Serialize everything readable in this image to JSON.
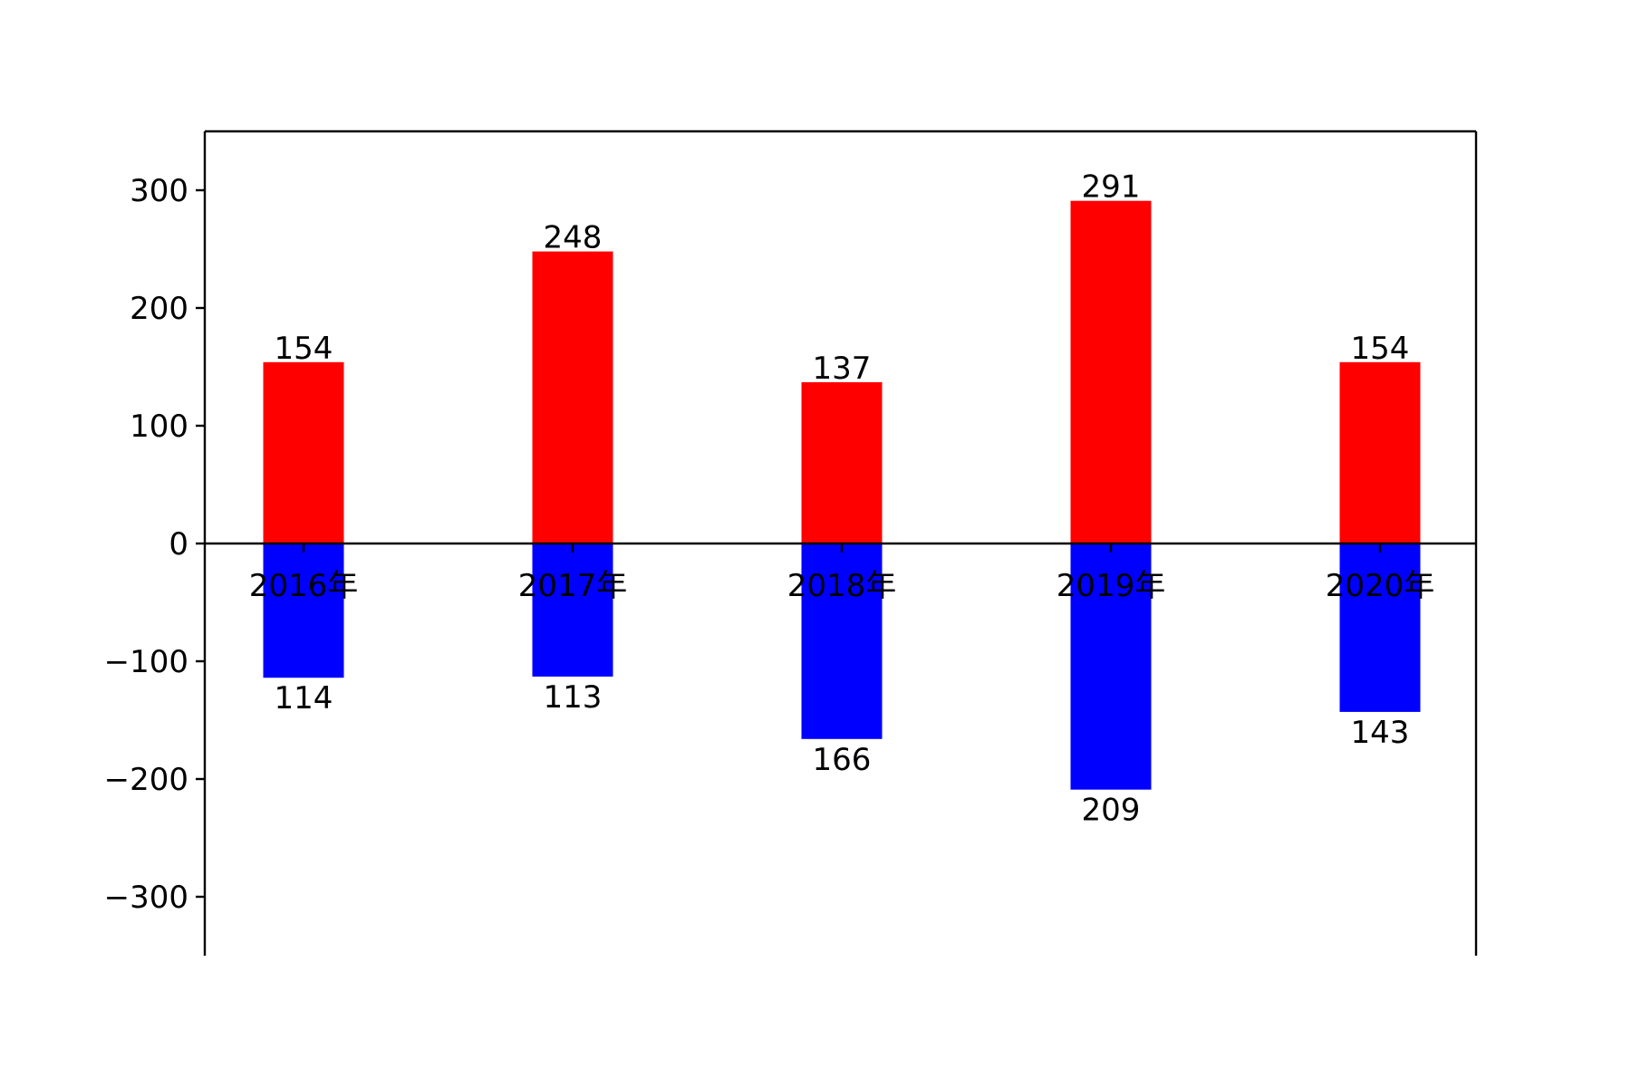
{
  "chart_data": {
    "type": "bar",
    "categories": [
      "2016年",
      "2017年",
      "2018年",
      "2019年",
      "2020年"
    ],
    "series": [
      {
        "values": [
          154,
          248,
          137,
          291,
          154
        ],
        "color": "#ff0000"
      },
      {
        "values": [
          -114,
          -113,
          -166,
          -209,
          -143
        ],
        "color": "#0000ff"
      }
    ],
    "data_labels_positive": [
      "154",
      "248",
      "137",
      "291",
      "154"
    ],
    "data_labels_negative": [
      "114",
      "113",
      "166",
      "209",
      "143"
    ],
    "ylim": [
      -350,
      350
    ],
    "yticks": [
      -300,
      -200,
      -100,
      0,
      100,
      200,
      300
    ],
    "ytick_labels": [
      "−300",
      "−200",
      "−100",
      "0",
      "100",
      "200",
      "300"
    ],
    "title": "",
    "xlabel": "",
    "ylabel": "",
    "grid": false,
    "legend": false,
    "zero_line": true,
    "spines": {
      "top": true,
      "left": true,
      "right": true,
      "bottom": false
    }
  }
}
